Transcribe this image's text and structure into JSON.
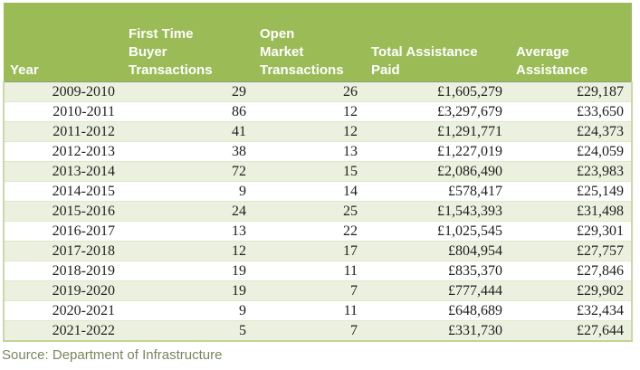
{
  "colors": {
    "header_background": "#9bbb57",
    "header_text": "#ffffff",
    "stripe_row_background": "#ebf1de",
    "plain_row_background": "#ffffff",
    "table_border": "#cbd8a2",
    "header_underline": "#8f9a7d",
    "body_text": "#1f1f1f",
    "source_text": "#78865f"
  },
  "table": {
    "columns": [
      {
        "label": "Year"
      },
      {
        "label": "First Time\nBuyer\nTransactions"
      },
      {
        "label": "Open\nMarket\nTransactions"
      },
      {
        "label": "Total Assistance\nPaid"
      },
      {
        "label": "Average\nAssistance"
      }
    ],
    "rows": [
      [
        "2009-2010",
        "29",
        "26",
        "£1,605,279",
        "£29,187"
      ],
      [
        "2010-2011",
        "86",
        "12",
        "£3,297,679",
        "£33,650"
      ],
      [
        "2011-2012",
        "41",
        "12",
        "£1,291,771",
        "£24,373"
      ],
      [
        "2012-2013",
        "38",
        "13",
        "£1,227,019",
        "£24,059"
      ],
      [
        "2013-2014",
        "72",
        "15",
        "£2,086,490",
        "£23,983"
      ],
      [
        "2014-2015",
        "9",
        "14",
        "£578,417",
        "£25,149"
      ],
      [
        "2015-2016",
        "24",
        "25",
        "£1,543,393",
        "£31,498"
      ],
      [
        "2016-2017",
        "13",
        "22",
        "£1,025,545",
        "£29,301"
      ],
      [
        "2017-2018",
        "12",
        "17",
        "£804,954",
        "£27,757"
      ],
      [
        "2018-2019",
        "19",
        "11",
        "£835,370",
        "£27,846"
      ],
      [
        "2019-2020",
        "19",
        "7",
        "£777,444",
        "£29,902"
      ],
      [
        "2020-2021",
        "9",
        "11",
        "£648,689",
        "£32,434"
      ],
      [
        "2021-2022",
        "5",
        "7",
        "£331,730",
        "£27,644"
      ]
    ]
  },
  "source": {
    "label": "Source: Department of Infrastructure"
  }
}
